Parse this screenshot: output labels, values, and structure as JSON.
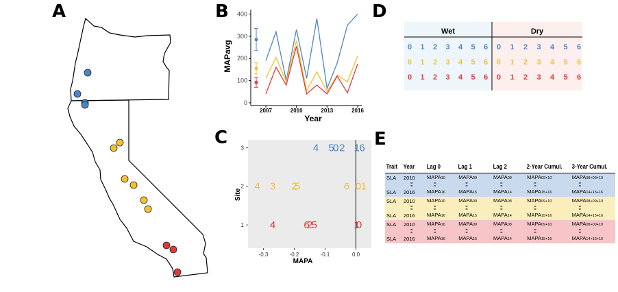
{
  "panels": {
    "a": "A",
    "b": "B",
    "c": "C",
    "d": "D",
    "e": "E"
  },
  "colors": {
    "wet": "#4a86c6",
    "mid": "#f2c230",
    "dry": "#e03a3a"
  },
  "map_points": [
    {
      "group": "wet"
    },
    {
      "group": "wet"
    },
    {
      "group": "wet"
    },
    {
      "group": "wet"
    },
    {
      "group": "mid"
    },
    {
      "group": "mid"
    },
    {
      "group": "mid"
    },
    {
      "group": "mid"
    },
    {
      "group": "mid"
    },
    {
      "group": "mid"
    },
    {
      "group": "dry"
    },
    {
      "group": "dry"
    },
    {
      "group": "dry"
    }
  ],
  "chart_data": [
    {
      "type": "line",
      "ylabel": "MAPavg",
      "xlabel": "Year",
      "x_ticks": [
        "2007",
        "2010",
        "2013",
        "2016"
      ],
      "y_ticks": [
        0,
        100,
        200,
        300,
        400
      ],
      "ylim": [
        0,
        420
      ],
      "x": [
        2007,
        2008,
        2009,
        2010,
        2011,
        2012,
        2013,
        2014,
        2015,
        2016
      ],
      "series": [
        {
          "group": "wet",
          "values": [
            190,
            320,
            100,
            330,
            110,
            380,
            65,
            180,
            350,
            400
          ],
          "avg": 285,
          "err": [
            235,
            335
          ]
        },
        {
          "group": "mid",
          "values": [
            110,
            205,
            95,
            280,
            55,
            140,
            50,
            125,
            95,
            210
          ],
          "avg": 155,
          "err": [
            130,
            180
          ]
        },
        {
          "group": "dry",
          "values": [
            40,
            160,
            80,
            255,
            40,
            80,
            40,
            120,
            45,
            175
          ],
          "avg": 92,
          "err": [
            70,
            115
          ]
        }
      ]
    },
    {
      "type": "scatter",
      "xlabel": "MAPA",
      "ylabel": "Site",
      "x_ticks": [
        -0.3,
        -0.2,
        -0.1,
        0.0
      ],
      "y_ticks": [
        1,
        2,
        3
      ],
      "xlim": [
        -0.35,
        0.05
      ],
      "series": [
        {
          "group": "wet",
          "points": [
            {
              "x": -0.13,
              "y": 3,
              "label": "4"
            },
            {
              "x": -0.08,
              "y": 3,
              "label": "5"
            },
            {
              "x": -0.065,
              "y": 3,
              "label": "0"
            },
            {
              "x": -0.045,
              "y": 3,
              "label": "2"
            },
            {
              "x": 0.003,
              "y": 3,
              "label": "1"
            },
            {
              "x": 0.02,
              "y": 3,
              "label": "6"
            }
          ]
        },
        {
          "group": "mid",
          "points": [
            {
              "x": -0.32,
              "y": 2,
              "label": "4"
            },
            {
              "x": -0.27,
              "y": 2,
              "label": "3"
            },
            {
              "x": -0.2,
              "y": 2,
              "label": "2"
            },
            {
              "x": -0.19,
              "y": 2,
              "label": "5"
            },
            {
              "x": -0.03,
              "y": 2,
              "label": "6"
            },
            {
              "x": 0.008,
              "y": 2,
              "label": "0"
            },
            {
              "x": 0.025,
              "y": 2,
              "label": "1"
            }
          ]
        },
        {
          "group": "dry",
          "points": [
            {
              "x": -0.27,
              "y": 1,
              "label": "4"
            },
            {
              "x": -0.16,
              "y": 1,
              "label": "6"
            },
            {
              "x": -0.15,
              "y": 1,
              "label": "2"
            },
            {
              "x": -0.135,
              "y": 1,
              "label": "5"
            },
            {
              "x": 0.002,
              "y": 1,
              "label": "1"
            },
            {
              "x": 0.01,
              "y": 1,
              "label": "0"
            }
          ]
        }
      ]
    }
  ],
  "lag_grid": {
    "wet_label": "Wet",
    "dry_label": "Dry",
    "digits": [
      "0",
      "1",
      "2",
      "3",
      "4",
      "5",
      "6"
    ],
    "rows": [
      "wet",
      "mid",
      "dry"
    ]
  },
  "table": {
    "headers": [
      "Trait",
      "Year",
      "Lag 0",
      "Lag 1",
      "Lag 2",
      "2-Year Cumul.",
      "3-Year Cumul."
    ],
    "eq_mark": "=",
    "groups": [
      {
        "class": "g-wet",
        "first": [
          "SLA",
          "2010",
          "MAPA10",
          "MAPA09",
          "MAPA08",
          "MAPA09+10",
          "MAPA08+09+10"
        ],
        "last": [
          "SLA",
          "2016",
          "MAPA16",
          "MAPA15",
          "MAPA14",
          "MAPA15+16",
          "MAPA14+15+16"
        ]
      },
      {
        "class": "g-mid",
        "first": [
          "SLA",
          "2010",
          "MAPA10",
          "MAPA09",
          "MAPA08",
          "MAPA09+10",
          "MAPA08+09+10"
        ],
        "last": [
          "SLA",
          "2016",
          "MAPA16",
          "MAPA15",
          "MAPA14",
          "MAPA15+16",
          "MAPA14+15+16"
        ]
      },
      {
        "class": "g-dry",
        "first": [
          "SLA",
          "2010",
          "MAPA10",
          "MAPA09",
          "MAPA08",
          "MAPA09+10",
          "MAPA08+09+10"
        ],
        "last": [
          "SLA",
          "2016",
          "MAPA16",
          "MAPA15",
          "MAPA14",
          "MAPA15+16",
          "MAPA14+15+16"
        ]
      }
    ]
  }
}
